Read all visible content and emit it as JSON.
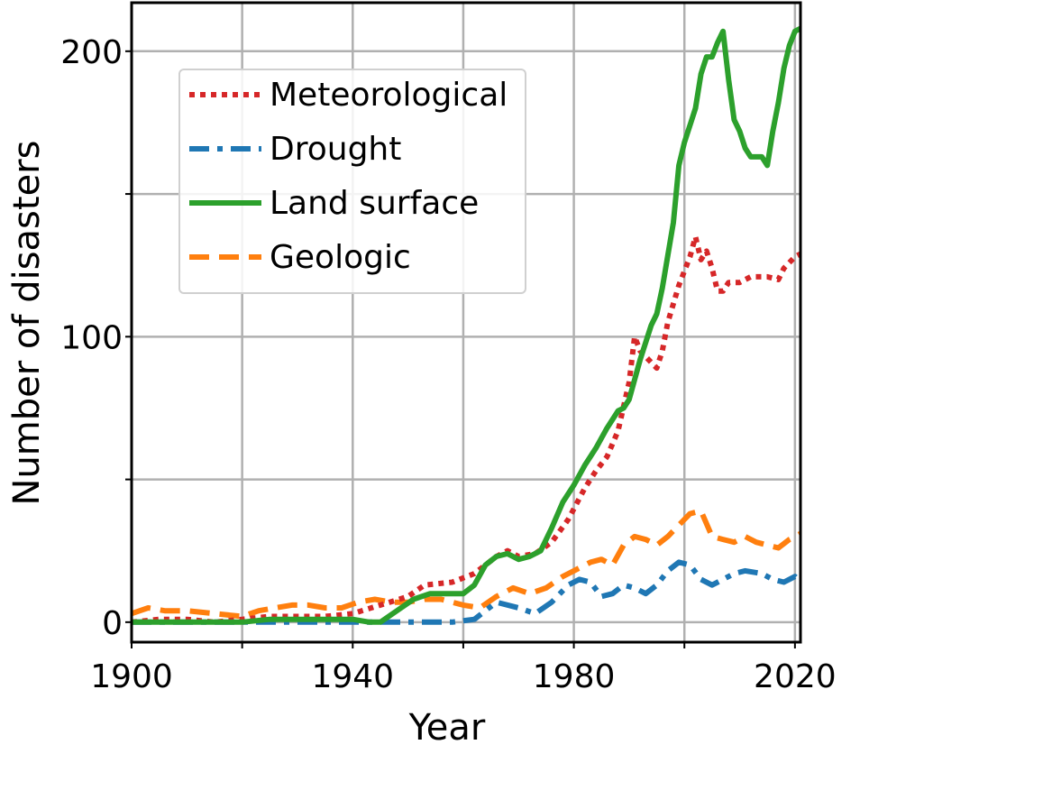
{
  "chart_data": {
    "type": "line",
    "title": "",
    "xlabel": "Year",
    "ylabel": "Number of disasters",
    "xlim": [
      1900,
      2021
    ],
    "ylim": [
      -7,
      217
    ],
    "xticks": [
      1900,
      1920,
      1940,
      1960,
      1980,
      2000,
      2020
    ],
    "xtick_labels": [
      "1900",
      "",
      "1940",
      "",
      "1980",
      "",
      "2020"
    ],
    "yticks": [
      0,
      50,
      100,
      150,
      200
    ],
    "ytick_labels": [
      "0",
      "",
      "100",
      "",
      "200"
    ],
    "grid": true,
    "legend_position": "top-left",
    "series": [
      {
        "name": "Meteorological",
        "color": "#d62728",
        "style": "dotted",
        "points": [
          [
            1900,
            0
          ],
          [
            1905,
            1
          ],
          [
            1910,
            1
          ],
          [
            1915,
            0
          ],
          [
            1920,
            1
          ],
          [
            1925,
            2
          ],
          [
            1930,
            2
          ],
          [
            1935,
            2
          ],
          [
            1940,
            3
          ],
          [
            1945,
            6
          ],
          [
            1950,
            9
          ],
          [
            1953,
            13
          ],
          [
            1958,
            14
          ],
          [
            1962,
            17
          ],
          [
            1966,
            23
          ],
          [
            1968,
            25
          ],
          [
            1970,
            23
          ],
          [
            1973,
            24
          ],
          [
            1976,
            28
          ],
          [
            1979,
            36
          ],
          [
            1982,
            47
          ],
          [
            1984,
            53
          ],
          [
            1986,
            58
          ],
          [
            1988,
            67
          ],
          [
            1990,
            84
          ],
          [
            1991,
            100
          ],
          [
            1992,
            95
          ],
          [
            1994,
            91
          ],
          [
            1995,
            89
          ],
          [
            1996,
            95
          ],
          [
            1997,
            105
          ],
          [
            1999,
            118
          ],
          [
            2001,
            128
          ],
          [
            2002,
            135
          ],
          [
            2003,
            127
          ],
          [
            2004,
            130
          ],
          [
            2005,
            124
          ],
          [
            2006,
            116
          ],
          [
            2007,
            116
          ],
          [
            2008,
            119
          ],
          [
            2010,
            119
          ],
          [
            2012,
            121
          ],
          [
            2015,
            121
          ],
          [
            2017,
            120
          ],
          [
            2018,
            124
          ],
          [
            2020,
            128
          ],
          [
            2021,
            129
          ]
        ]
      },
      {
        "name": "Drought",
        "color": "#1f77b4",
        "style": "dashdot",
        "points": [
          [
            1900,
            0
          ],
          [
            1910,
            0
          ],
          [
            1920,
            0
          ],
          [
            1930,
            0
          ],
          [
            1940,
            0
          ],
          [
            1948,
            0
          ],
          [
            1955,
            0
          ],
          [
            1958,
            0
          ],
          [
            1962,
            1
          ],
          [
            1966,
            7
          ],
          [
            1970,
            5
          ],
          [
            1973,
            3
          ],
          [
            1976,
            7
          ],
          [
            1979,
            13
          ],
          [
            1981,
            15
          ],
          [
            1983,
            14
          ],
          [
            1985,
            9
          ],
          [
            1987,
            10
          ],
          [
            1989,
            13
          ],
          [
            1991,
            12
          ],
          [
            1993,
            10
          ],
          [
            1995,
            13
          ],
          [
            1997,
            18
          ],
          [
            1999,
            21
          ],
          [
            2001,
            20
          ],
          [
            2003,
            15
          ],
          [
            2005,
            13
          ],
          [
            2007,
            15
          ],
          [
            2009,
            17
          ],
          [
            2011,
            18
          ],
          [
            2014,
            17
          ],
          [
            2016,
            15
          ],
          [
            2018,
            14
          ],
          [
            2020,
            16
          ],
          [
            2021,
            14
          ]
        ]
      },
      {
        "name": "Land surface",
        "color": "#2ca02c",
        "style": "solid",
        "points": [
          [
            1900,
            0
          ],
          [
            1910,
            0
          ],
          [
            1920,
            0
          ],
          [
            1925,
            1
          ],
          [
            1930,
            1
          ],
          [
            1935,
            1
          ],
          [
            1940,
            1
          ],
          [
            1943,
            0
          ],
          [
            1945,
            0
          ],
          [
            1948,
            4
          ],
          [
            1951,
            8
          ],
          [
            1954,
            10
          ],
          [
            1957,
            10
          ],
          [
            1960,
            10
          ],
          [
            1962,
            13
          ],
          [
            1964,
            20
          ],
          [
            1966,
            23
          ],
          [
            1968,
            24
          ],
          [
            1970,
            22
          ],
          [
            1972,
            23
          ],
          [
            1974,
            25
          ],
          [
            1976,
            33
          ],
          [
            1978,
            42
          ],
          [
            1980,
            48
          ],
          [
            1982,
            55
          ],
          [
            1984,
            61
          ],
          [
            1986,
            68
          ],
          [
            1988,
            74
          ],
          [
            1989,
            75
          ],
          [
            1990,
            78
          ],
          [
            1992,
            92
          ],
          [
            1994,
            104
          ],
          [
            1995,
            108
          ],
          [
            1996,
            117
          ],
          [
            1998,
            140
          ],
          [
            1999,
            160
          ],
          [
            2000,
            168
          ],
          [
            2002,
            180
          ],
          [
            2003,
            192
          ],
          [
            2004,
            198
          ],
          [
            2005,
            198
          ],
          [
            2006,
            203
          ],
          [
            2007,
            207
          ],
          [
            2008,
            190
          ],
          [
            2009,
            176
          ],
          [
            2010,
            172
          ],
          [
            2011,
            166
          ],
          [
            2012,
            163
          ],
          [
            2014,
            163
          ],
          [
            2015,
            160
          ],
          [
            2016,
            172
          ],
          [
            2017,
            182
          ],
          [
            2018,
            194
          ],
          [
            2019,
            202
          ],
          [
            2020,
            207
          ],
          [
            2021,
            208
          ]
        ]
      },
      {
        "name": "Geologic",
        "color": "#ff7f0e",
        "style": "dashed",
        "points": [
          [
            1900,
            3
          ],
          [
            1903,
            5
          ],
          [
            1906,
            4
          ],
          [
            1910,
            4
          ],
          [
            1915,
            3
          ],
          [
            1920,
            2
          ],
          [
            1923,
            4
          ],
          [
            1926,
            5
          ],
          [
            1929,
            6
          ],
          [
            1932,
            6
          ],
          [
            1935,
            5
          ],
          [
            1938,
            5
          ],
          [
            1941,
            7
          ],
          [
            1944,
            8
          ],
          [
            1947,
            7
          ],
          [
            1950,
            7
          ],
          [
            1953,
            8
          ],
          [
            1956,
            8
          ],
          [
            1960,
            6
          ],
          [
            1963,
            5
          ],
          [
            1966,
            9
          ],
          [
            1969,
            12
          ],
          [
            1972,
            10
          ],
          [
            1975,
            12
          ],
          [
            1978,
            16
          ],
          [
            1980,
            18
          ],
          [
            1983,
            21
          ],
          [
            1985,
            22
          ],
          [
            1987,
            20
          ],
          [
            1989,
            27
          ],
          [
            1991,
            30
          ],
          [
            1993,
            29
          ],
          [
            1995,
            27
          ],
          [
            1997,
            30
          ],
          [
            1999,
            34
          ],
          [
            2001,
            38
          ],
          [
            2003,
            39
          ],
          [
            2005,
            30
          ],
          [
            2007,
            29
          ],
          [
            2009,
            28
          ],
          [
            2011,
            30
          ],
          [
            2013,
            28
          ],
          [
            2015,
            27
          ],
          [
            2017,
            26
          ],
          [
            2019,
            29
          ],
          [
            2021,
            31
          ]
        ]
      }
    ]
  }
}
